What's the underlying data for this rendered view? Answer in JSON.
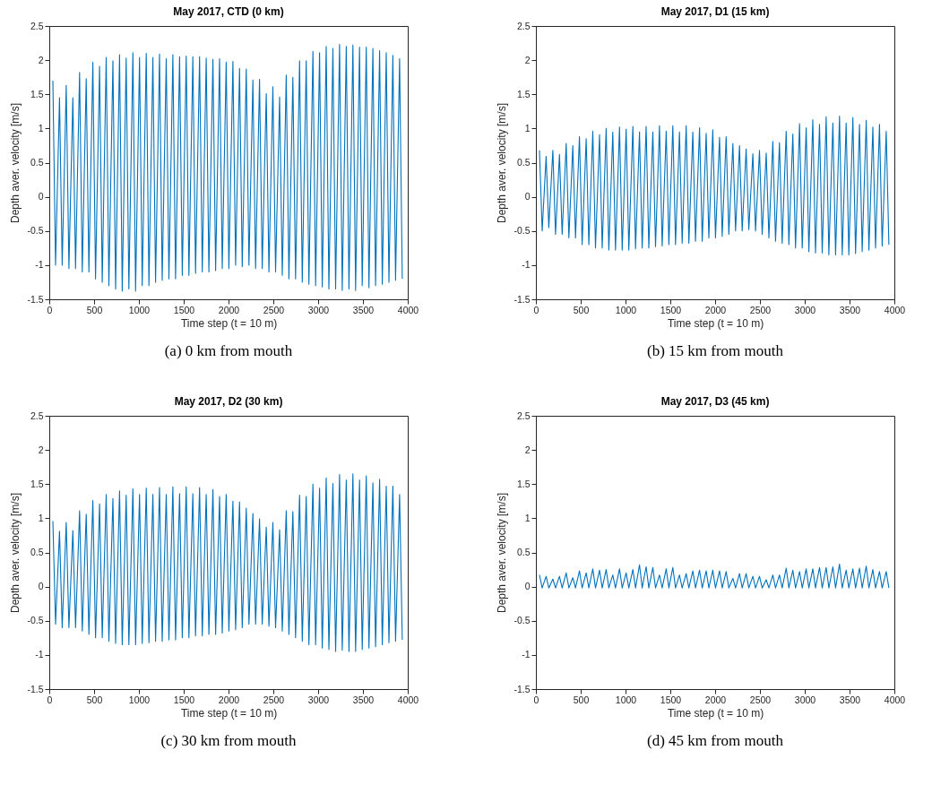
{
  "chart_data": [
    {
      "type": "line",
      "title": "May 2017, CTD (0 km)",
      "xlabel": "Time step (t = 10 m)",
      "ylabel": "Depth aver. velocity [m/s]",
      "annotations": [
        "(a) 0 km from mouth"
      ],
      "xlim": [
        0,
        4000
      ],
      "xticks": [
        0,
        500,
        1000,
        1500,
        2000,
        2500,
        3000,
        3500,
        4000
      ],
      "ylim": [
        -1.5,
        2.5
      ],
      "yticks": [
        -1.5,
        -1,
        -0.5,
        0,
        0.5,
        1,
        1.5,
        2,
        2.5
      ],
      "x": [
        40,
        70,
        114,
        144,
        189,
        219,
        263,
        293,
        338,
        368,
        412,
        442,
        486,
        516,
        561,
        591,
        635,
        665,
        710,
        740,
        784,
        814,
        858,
        888,
        933,
        963,
        1007,
        1037,
        1082,
        1112,
        1156,
        1186,
        1230,
        1260,
        1305,
        1335,
        1379,
        1409,
        1454,
        1484,
        1528,
        1558,
        1602,
        1632,
        1677,
        1707,
        1751,
        1781,
        1826,
        1856,
        1900,
        1930,
        1974,
        2004,
        2049,
        2079,
        2123,
        2153,
        2198,
        2228,
        2272,
        2302,
        2346,
        2376,
        2421,
        2451,
        2495,
        2525,
        2570,
        2600,
        2644,
        2674,
        2718,
        2748,
        2793,
        2823,
        2867,
        2897,
        2942,
        2972,
        3016,
        3046,
        3090,
        3120,
        3165,
        3195,
        3239,
        3269,
        3314,
        3344,
        3388,
        3418,
        3462,
        3492,
        3537,
        3567,
        3611,
        3641,
        3686,
        3716,
        3760,
        3790,
        3834,
        3864,
        3909,
        3939
      ],
      "series": [
        {
          "color": "#0072bd",
          "values": [
            1.7,
            -1.0,
            1.45,
            -1.0,
            1.63,
            -1.05,
            1.45,
            -1.05,
            1.82,
            -1.1,
            1.73,
            -1.1,
            1.97,
            -1.2,
            1.91,
            -1.25,
            2.04,
            -1.3,
            1.99,
            -1.35,
            2.08,
            -1.38,
            2.03,
            -1.35,
            2.11,
            -1.38,
            2.04,
            -1.3,
            2.1,
            -1.3,
            2.04,
            -1.25,
            2.09,
            -1.22,
            2.02,
            -1.2,
            2.08,
            -1.2,
            2.05,
            -1.15,
            2.06,
            -1.15,
            2.05,
            -1.12,
            2.05,
            -1.1,
            2.03,
            -1.1,
            2.01,
            -1.08,
            2.02,
            -1.05,
            1.97,
            -1.05,
            1.98,
            -1.0,
            1.88,
            -1.02,
            1.87,
            -1.0,
            1.71,
            -1.05,
            1.72,
            -1.05,
            1.51,
            -1.1,
            1.61,
            -1.1,
            1.46,
            -1.15,
            1.78,
            -1.2,
            1.75,
            -1.2,
            1.99,
            -1.25,
            1.99,
            -1.28,
            2.13,
            -1.3,
            2.11,
            -1.32,
            2.2,
            -1.35,
            2.17,
            -1.35,
            2.23,
            -1.37,
            2.2,
            -1.35,
            2.22,
            -1.37,
            2.19,
            -1.3,
            2.19,
            -1.33,
            2.17,
            -1.3,
            2.14,
            -1.28,
            2.11,
            -1.25,
            2.07,
            -1.22,
            2.02,
            -1.2
          ]
        }
      ]
    },
    {
      "type": "line",
      "title": "May 2017, D1 (15 km)",
      "xlabel": "Time step (t = 10 m)",
      "ylabel": "Depth aver. velocity [m/s]",
      "annotations": [
        "(b) 15 km from mouth"
      ],
      "xlim": [
        0,
        4000
      ],
      "xticks": [
        0,
        500,
        1000,
        1500,
        2000,
        2500,
        3000,
        3500,
        4000
      ],
      "ylim": [
        -1.5,
        2.5
      ],
      "yticks": [
        -1.5,
        -1,
        -0.5,
        0,
        0.5,
        1,
        1.5,
        2,
        2.5
      ],
      "x": [
        40,
        70,
        114,
        144,
        189,
        219,
        263,
        293,
        338,
        368,
        412,
        442,
        486,
        516,
        561,
        591,
        635,
        665,
        710,
        740,
        784,
        814,
        858,
        888,
        933,
        963,
        1007,
        1037,
        1082,
        1112,
        1156,
        1186,
        1230,
        1260,
        1305,
        1335,
        1379,
        1409,
        1454,
        1484,
        1528,
        1558,
        1602,
        1632,
        1677,
        1707,
        1751,
        1781,
        1826,
        1856,
        1900,
        1930,
        1974,
        2004,
        2049,
        2079,
        2123,
        2153,
        2198,
        2228,
        2272,
        2302,
        2346,
        2376,
        2421,
        2451,
        2495,
        2525,
        2570,
        2600,
        2644,
        2674,
        2718,
        2748,
        2793,
        2823,
        2867,
        2897,
        2942,
        2972,
        3016,
        3046,
        3090,
        3120,
        3165,
        3195,
        3239,
        3269,
        3314,
        3344,
        3388,
        3418,
        3462,
        3492,
        3537,
        3567,
        3611,
        3641,
        3686,
        3716,
        3760,
        3790,
        3834,
        3864,
        3909,
        3939
      ],
      "series": [
        {
          "color": "#0072bd",
          "values": [
            0.68,
            -0.5,
            0.59,
            -0.45,
            0.68,
            -0.55,
            0.62,
            -0.55,
            0.78,
            -0.6,
            0.75,
            -0.6,
            0.88,
            -0.7,
            0.85,
            -0.7,
            0.96,
            -0.75,
            0.91,
            -0.75,
            1.0,
            -0.78,
            0.95,
            -0.78,
            1.02,
            -0.78,
            0.99,
            -0.78,
            1.03,
            -0.76,
            0.95,
            -0.75,
            1.03,
            -0.75,
            0.95,
            -0.73,
            1.04,
            -0.72,
            0.96,
            -0.7,
            1.04,
            -0.7,
            0.95,
            -0.68,
            1.04,
            -0.68,
            0.95,
            -0.65,
            1.01,
            -0.65,
            0.93,
            -0.6,
            0.98,
            -0.6,
            0.87,
            -0.58,
            0.88,
            -0.55,
            0.78,
            -0.5,
            0.75,
            -0.5,
            0.7,
            -0.48,
            0.63,
            -0.5,
            0.68,
            -0.55,
            0.64,
            -0.6,
            0.81,
            -0.65,
            0.79,
            -0.68,
            0.96,
            -0.7,
            0.92,
            -0.75,
            1.07,
            -0.75,
            1.01,
            -0.8,
            1.13,
            -0.82,
            1.06,
            -0.82,
            1.17,
            -0.85,
            1.08,
            -0.85,
            1.18,
            -0.85,
            1.08,
            -0.85,
            1.16,
            -0.83,
            1.06,
            -0.8,
            1.12,
            -0.78,
            1.02,
            -0.75,
            1.06,
            -0.72,
            0.96,
            -0.7
          ]
        }
      ]
    },
    {
      "type": "line",
      "title": "May 2017, D2 (30 km)",
      "xlabel": "Time step (t = 10 m)",
      "ylabel": "Depth aver. velocity [m/s]",
      "annotations": [
        "(c) 30 km from mouth"
      ],
      "xlim": [
        0,
        4000
      ],
      "xticks": [
        0,
        500,
        1000,
        1500,
        2000,
        2500,
        3000,
        3500,
        4000
      ],
      "ylim": [
        -1.5,
        2.5
      ],
      "yticks": [
        -1.5,
        -1,
        -0.5,
        0,
        0.5,
        1,
        1.5,
        2,
        2.5
      ],
      "x": [
        40,
        70,
        114,
        144,
        189,
        219,
        263,
        293,
        338,
        368,
        412,
        442,
        486,
        516,
        561,
        591,
        635,
        665,
        710,
        740,
        784,
        814,
        858,
        888,
        933,
        963,
        1007,
        1037,
        1082,
        1112,
        1156,
        1186,
        1230,
        1260,
        1305,
        1335,
        1379,
        1409,
        1454,
        1484,
        1528,
        1558,
        1602,
        1632,
        1677,
        1707,
        1751,
        1781,
        1826,
        1856,
        1900,
        1930,
        1974,
        2004,
        2049,
        2079,
        2123,
        2153,
        2198,
        2228,
        2272,
        2302,
        2346,
        2376,
        2421,
        2451,
        2495,
        2525,
        2570,
        2600,
        2644,
        2674,
        2718,
        2748,
        2793,
        2823,
        2867,
        2897,
        2942,
        2972,
        3016,
        3046,
        3090,
        3120,
        3165,
        3195,
        3239,
        3269,
        3314,
        3344,
        3388,
        3418,
        3462,
        3492,
        3537,
        3567,
        3611,
        3641,
        3686,
        3716,
        3760,
        3790,
        3834,
        3864,
        3909,
        3939
      ],
      "series": [
        {
          "color": "#0072bd",
          "values": [
            0.96,
            -0.55,
            0.81,
            -0.6,
            0.94,
            -0.6,
            0.82,
            -0.6,
            1.11,
            -0.65,
            1.06,
            -0.7,
            1.26,
            -0.75,
            1.21,
            -0.75,
            1.35,
            -0.8,
            1.29,
            -0.83,
            1.4,
            -0.85,
            1.34,
            -0.85,
            1.43,
            -0.85,
            1.35,
            -0.83,
            1.44,
            -0.82,
            1.35,
            -0.8,
            1.45,
            -0.8,
            1.35,
            -0.78,
            1.46,
            -0.78,
            1.36,
            -0.75,
            1.46,
            -0.75,
            1.36,
            -0.72,
            1.45,
            -0.72,
            1.35,
            -0.7,
            1.42,
            -0.7,
            1.32,
            -0.68,
            1.35,
            -0.65,
            1.25,
            -0.63,
            1.24,
            -0.6,
            1.15,
            -0.55,
            1.07,
            -0.55,
            0.99,
            -0.55,
            0.87,
            -0.58,
            0.94,
            -0.6,
            0.83,
            -0.65,
            1.11,
            -0.7,
            1.1,
            -0.75,
            1.34,
            -0.8,
            1.32,
            -0.85,
            1.5,
            -0.85,
            1.44,
            -0.9,
            1.59,
            -0.92,
            1.51,
            -0.95,
            1.64,
            -0.93,
            1.56,
            -0.95,
            1.65,
            -0.95,
            1.56,
            -0.92,
            1.62,
            -0.9,
            1.52,
            -0.88,
            1.57,
            -0.85,
            1.47,
            -0.82,
            1.47,
            -0.8,
            1.35,
            -0.78
          ]
        }
      ]
    },
    {
      "type": "line",
      "title": "May 2017, D3 (45 km)",
      "xlabel": "Time step (t = 10 m)",
      "ylabel": "Depth aver. velocity [m/s]",
      "annotations": [
        "(d) 45 km from mouth"
      ],
      "xlim": [
        0,
        4000
      ],
      "xticks": [
        0,
        500,
        1000,
        1500,
        2000,
        2500,
        3000,
        3500,
        4000
      ],
      "ylim": [
        -1.5,
        2.5
      ],
      "yticks": [
        -1.5,
        -1,
        -0.5,
        0,
        0.5,
        1,
        1.5,
        2,
        2.5
      ],
      "x": [
        40,
        70,
        114,
        144,
        189,
        219,
        263,
        293,
        338,
        368,
        412,
        442,
        486,
        516,
        561,
        591,
        635,
        665,
        710,
        740,
        784,
        814,
        858,
        888,
        933,
        963,
        1007,
        1037,
        1082,
        1112,
        1156,
        1186,
        1230,
        1260,
        1305,
        1335,
        1379,
        1409,
        1454,
        1484,
        1528,
        1558,
        1602,
        1632,
        1677,
        1707,
        1751,
        1781,
        1826,
        1856,
        1900,
        1930,
        1974,
        2004,
        2049,
        2079,
        2123,
        2153,
        2198,
        2228,
        2272,
        2302,
        2346,
        2376,
        2421,
        2451,
        2495,
        2525,
        2570,
        2600,
        2644,
        2674,
        2718,
        2748,
        2793,
        2823,
        2867,
        2897,
        2942,
        2972,
        3016,
        3046,
        3090,
        3120,
        3165,
        3195,
        3239,
        3269,
        3314,
        3344,
        3388,
        3418,
        3462,
        3492,
        3537,
        3567,
        3611,
        3641,
        3686,
        3716,
        3760,
        3790,
        3834,
        3864,
        3909,
        3939
      ],
      "series": [
        {
          "color": "#0072bd",
          "values": [
            0.17,
            -0.02,
            0.15,
            -0.02,
            0.11,
            -0.02,
            0.15,
            -0.02,
            0.2,
            -0.02,
            0.13,
            -0.02,
            0.23,
            -0.02,
            0.2,
            -0.02,
            0.26,
            -0.02,
            0.24,
            -0.02,
            0.25,
            -0.02,
            0.17,
            -0.02,
            0.26,
            -0.02,
            0.2,
            -0.02,
            0.25,
            -0.02,
            0.32,
            -0.02,
            0.29,
            -0.02,
            0.28,
            -0.02,
            0.17,
            -0.02,
            0.26,
            -0.02,
            0.28,
            -0.02,
            0.17,
            -0.02,
            0.19,
            -0.02,
            0.23,
            -0.02,
            0.24,
            -0.02,
            0.23,
            -0.02,
            0.24,
            -0.02,
            0.23,
            -0.02,
            0.22,
            -0.02,
            0.12,
            -0.02,
            0.19,
            -0.02,
            0.19,
            -0.02,
            0.15,
            -0.02,
            0.15,
            -0.02,
            0.1,
            -0.02,
            0.17,
            -0.02,
            0.17,
            -0.02,
            0.27,
            -0.02,
            0.24,
            -0.02,
            0.22,
            -0.02,
            0.26,
            -0.02,
            0.26,
            -0.02,
            0.28,
            -0.02,
            0.28,
            -0.02,
            0.29,
            -0.02,
            0.33,
            -0.02,
            0.24,
            -0.02,
            0.26,
            -0.02,
            0.27,
            -0.02,
            0.3,
            -0.02,
            0.25,
            -0.02,
            0.22,
            -0.02,
            0.22,
            -0.02
          ]
        }
      ]
    }
  ]
}
